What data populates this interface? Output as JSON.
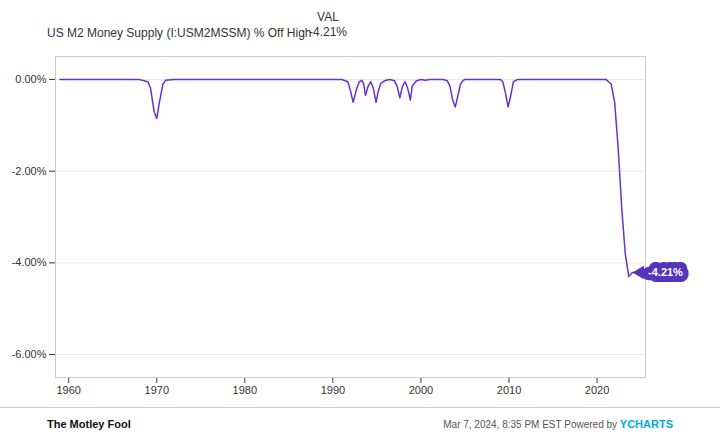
{
  "chart_data": {
    "type": "line",
    "title": "US M2 Money Supply (I:USM2MSSM) % Off High",
    "annotations": [
      {
        "text": "VAL"
      },
      {
        "text": "-4.21%"
      },
      {
        "text": "-4.21%",
        "color": "#5533bb"
      },
      {
        "text": "The Motley Fool"
      },
      {
        "text": "Mar 7, 2024, 8:35 PM EST Powered by "
      },
      {
        "text": "YCHARTS",
        "color": "#00aadd"
      }
    ],
    "x": [
      1959.0,
      1960.0,
      1961.0,
      1962.0,
      1963.0,
      1964.0,
      1965.0,
      1966.0,
      1967.0,
      1968.0,
      1969.0,
      1969.3,
      1969.7,
      1970.0,
      1970.3,
      1970.7,
      1971.0,
      1972.0,
      1973.0,
      1974.0,
      1975.0,
      1976.0,
      1977.0,
      1978.0,
      1979.0,
      1980.0,
      1981.0,
      1982.0,
      1983.0,
      1984.0,
      1985.0,
      1986.0,
      1987.0,
      1988.0,
      1989.0,
      1990.0,
      1991.0,
      1991.7,
      1992.0,
      1992.3,
      1992.7,
      1993.0,
      1993.3,
      1993.5,
      1993.7,
      1994.0,
      1994.3,
      1994.6,
      1994.9,
      1995.1,
      1995.4,
      1995.7,
      1996.0,
      1996.5,
      1997.0,
      1997.3,
      1997.6,
      1997.9,
      1998.2,
      1998.5,
      1998.8,
      1999.0,
      1999.5,
      2000.0,
      2000.5,
      2001.0,
      2001.5,
      2002.0,
      2002.5,
      2003.0,
      2003.3,
      2003.6,
      2003.9,
      2004.2,
      2004.5,
      2004.8,
      2005.0,
      2006.0,
      2007.0,
      2008.0,
      2009.0,
      2009.3,
      2009.6,
      2009.9,
      2010.2,
      2010.5,
      2011.0,
      2012.0,
      2013.0,
      2014.0,
      2015.0,
      2016.0,
      2017.0,
      2018.0,
      2019.0,
      2020.0,
      2021.0,
      2021.3,
      2021.6,
      2022.0,
      2022.4,
      2022.8,
      2023.2,
      2023.6,
      2024.0,
      2024.2
    ],
    "series": [
      {
        "color": "#6633cc",
        "values": [
          0.0,
          0.0,
          0.0,
          0.0,
          0.0,
          0.0,
          0.0,
          0.0,
          0.0,
          0.0,
          -0.05,
          -0.2,
          -0.7,
          -0.85,
          -0.5,
          -0.1,
          -0.02,
          0.0,
          0.0,
          0.0,
          0.0,
          0.0,
          0.0,
          0.0,
          0.0,
          0.0,
          0.0,
          0.0,
          0.0,
          0.0,
          0.0,
          0.0,
          0.0,
          0.0,
          0.0,
          0.0,
          0.0,
          -0.05,
          -0.25,
          -0.5,
          -0.2,
          -0.05,
          -0.02,
          -0.1,
          -0.35,
          -0.15,
          -0.05,
          -0.2,
          -0.5,
          -0.3,
          -0.1,
          -0.05,
          -0.02,
          0.0,
          -0.03,
          -0.15,
          -0.4,
          -0.15,
          -0.05,
          -0.2,
          -0.45,
          -0.15,
          -0.03,
          0.0,
          -0.02,
          0.0,
          0.0,
          0.0,
          0.0,
          -0.03,
          -0.15,
          -0.45,
          -0.6,
          -0.35,
          -0.1,
          -0.02,
          0.0,
          0.0,
          0.0,
          0.0,
          0.0,
          -0.05,
          -0.3,
          -0.6,
          -0.35,
          -0.05,
          0.0,
          0.0,
          0.0,
          0.0,
          0.0,
          0.0,
          0.0,
          0.0,
          0.0,
          0.0,
          0.0,
          -0.05,
          -0.1,
          -0.5,
          -1.5,
          -2.8,
          -3.8,
          -4.3,
          -4.21,
          -4.21
        ]
      }
    ],
    "xlim": [
      1958.5,
      2025.5
    ],
    "xticks": [
      1960,
      1970,
      1980,
      1990,
      2000,
      2010,
      2020
    ],
    "ylim": [
      -6.5,
      0.5
    ],
    "yticks": [
      {
        "value": 0.0,
        "label": "0.00%"
      },
      {
        "value": -2.0,
        "label": "-2.00%"
      },
      {
        "value": -4.0,
        "label": "-4.00%"
      },
      {
        "value": -6.0,
        "label": "-6.00%"
      }
    ],
    "grid": "y"
  }
}
